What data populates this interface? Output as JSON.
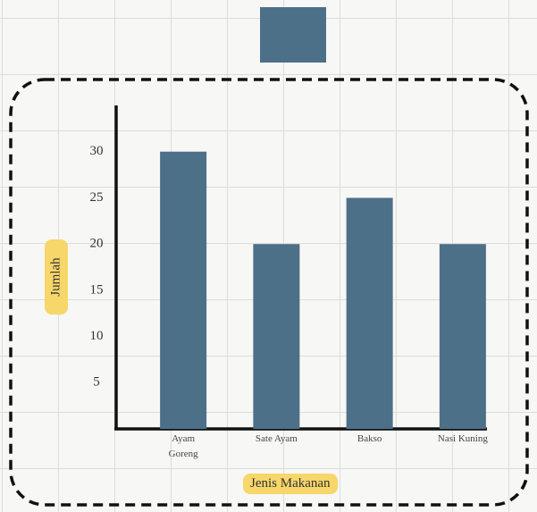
{
  "chart_data": {
    "type": "bar",
    "categories": [
      "Ayam Goreng",
      "Sate Ayam",
      "Bakso",
      "Nasi Kuning"
    ],
    "values": [
      30,
      20,
      25,
      20
    ],
    "color": "#4d7089",
    "ylim": [
      0,
      35
    ],
    "yticks": [
      5,
      10,
      15,
      20,
      25,
      30
    ],
    "ylabel": "Jumlah",
    "xlabel": "Jenis Makanan"
  }
}
